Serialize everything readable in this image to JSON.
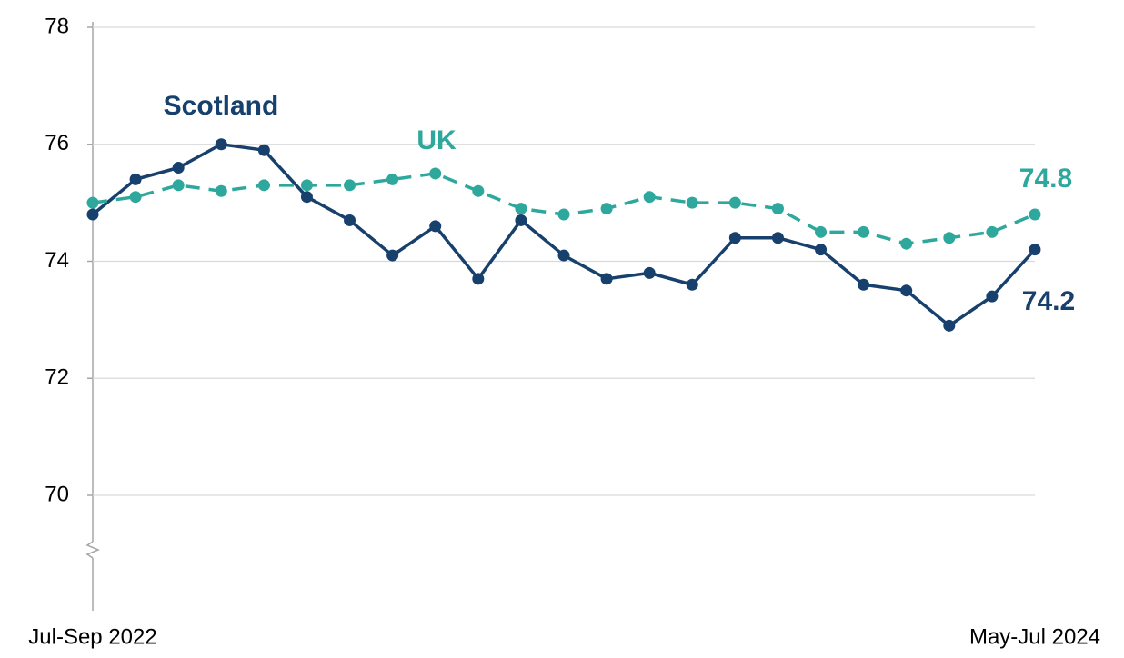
{
  "chart_data": {
    "type": "line",
    "categories": [
      "Jul-Sep 2022",
      null,
      null,
      null,
      null,
      null,
      null,
      null,
      null,
      null,
      null,
      null,
      null,
      null,
      null,
      null,
      null,
      null,
      null,
      null,
      null,
      null,
      "May-Jul 2024"
    ],
    "series": [
      {
        "name": "Scotland",
        "color": "#17406d",
        "dashed": false,
        "values": [
          74.8,
          75.4,
          75.6,
          76.0,
          75.9,
          75.1,
          74.7,
          74.1,
          74.6,
          73.7,
          74.7,
          74.1,
          73.7,
          73.8,
          73.6,
          74.4,
          74.4,
          74.2,
          73.6,
          73.5,
          72.9,
          73.4,
          74.2
        ]
      },
      {
        "name": "UK",
        "color": "#2ea89c",
        "dashed": true,
        "values": [
          75.0,
          75.1,
          75.3,
          75.2,
          75.3,
          75.3,
          75.3,
          75.4,
          75.5,
          75.2,
          74.9,
          74.8,
          74.9,
          75.1,
          75.0,
          75.0,
          74.9,
          74.5,
          74.5,
          74.3,
          74.4,
          74.5,
          74.8
        ]
      }
    ],
    "ylim": [
      68,
      78
    ],
    "yticks": [
      70,
      72,
      74,
      76,
      78
    ],
    "grid": true
  }
}
